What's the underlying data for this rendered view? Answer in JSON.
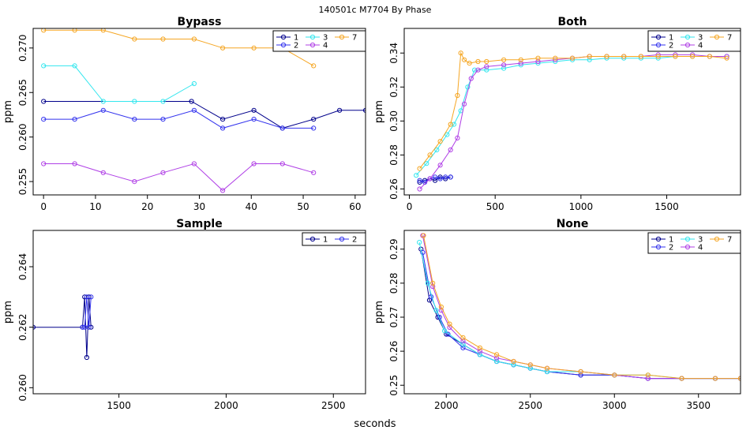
{
  "suptitle": "140501c    M7704   By Phase",
  "xlabel": "seconds",
  "colors": {
    "1": "#00008B",
    "2": "#3333EE",
    "3": "#33E6EE",
    "4": "#B040E6",
    "7": "#F5A623"
  },
  "chart_data": [
    {
      "type": "line",
      "title": "Bypass",
      "ylabel": "ppm",
      "xlim": [
        -2,
        62
      ],
      "ylim": [
        0.2535,
        0.2722
      ],
      "xticks": [
        0,
        10,
        20,
        30,
        40,
        50,
        60
      ],
      "yticks": [
        0.255,
        0.26,
        0.265,
        0.27
      ],
      "ytick_labels": [
        "0.255",
        "0.260",
        "0.265",
        "0.270"
      ],
      "legend": [
        "1",
        "2",
        "3",
        "4",
        "7"
      ],
      "series": [
        {
          "name": "1",
          "x": [
            0,
            28.5,
            34.5,
            40.5,
            46,
            52,
            57,
            62
          ],
          "y": [
            0.264,
            0.264,
            0.262,
            0.263,
            0.261,
            0.262,
            0.263,
            0.263
          ]
        },
        {
          "name": "2",
          "x": [
            0,
            6,
            11.5,
            17.5,
            23,
            29,
            34.5,
            40.5,
            46,
            52
          ],
          "y": [
            0.262,
            0.262,
            0.263,
            0.262,
            0.262,
            0.263,
            0.261,
            0.262,
            0.261,
            0.261
          ]
        },
        {
          "name": "3",
          "x": [
            0,
            6,
            11.5,
            17.5,
            23,
            29
          ],
          "y": [
            0.268,
            0.268,
            0.264,
            0.264,
            0.264,
            0.266
          ]
        },
        {
          "name": "4",
          "x": [
            0,
            6,
            11.5,
            17.5,
            23,
            29,
            34.5,
            40.5,
            46,
            52
          ],
          "y": [
            0.257,
            0.257,
            0.256,
            0.255,
            0.256,
            0.257,
            0.254,
            0.257,
            0.257,
            0.256
          ]
        },
        {
          "name": "7",
          "x": [
            0,
            6,
            11.5,
            17.5,
            23,
            29,
            34.5,
            40.5,
            46,
            52
          ],
          "y": [
            0.272,
            0.272,
            0.272,
            0.271,
            0.271,
            0.271,
            0.27,
            0.27,
            0.27,
            0.268
          ]
        }
      ]
    },
    {
      "type": "line",
      "title": "Both",
      "ylabel": "ppm",
      "xlim": [
        -30,
        1930
      ],
      "ylim": [
        0.2565,
        0.3545
      ],
      "xticks": [
        0,
        500,
        1000,
        1500
      ],
      "yticks": [
        0.26,
        0.28,
        0.3,
        0.32,
        0.34
      ],
      "ytick_labels": [
        "0.26",
        "0.28",
        "0.30",
        "0.32",
        "0.34"
      ],
      "legend": [
        "1",
        "2",
        "3",
        "4",
        "7"
      ],
      "series": [
        {
          "name": "1",
          "x": [
            60,
            90,
            120,
            150,
            180,
            210,
            240
          ],
          "y": [
            0.264,
            0.265,
            0.266,
            0.265,
            0.267,
            0.266,
            0.267
          ]
        },
        {
          "name": "2",
          "x": [
            60,
            90,
            120,
            150,
            180,
            210,
            240
          ],
          "y": [
            0.265,
            0.264,
            0.266,
            0.267,
            0.266,
            0.267,
            0.267
          ]
        },
        {
          "name": "3",
          "x": [
            40,
            100,
            160,
            220,
            260,
            300,
            340,
            380,
            450,
            550,
            650,
            750,
            850,
            950,
            1050,
            1150,
            1250,
            1350,
            1450,
            1550,
            1650,
            1750,
            1850
          ],
          "y": [
            0.268,
            0.275,
            0.283,
            0.292,
            0.298,
            0.306,
            0.32,
            0.33,
            0.33,
            0.331,
            0.333,
            0.334,
            0.335,
            0.336,
            0.336,
            0.337,
            0.337,
            0.337,
            0.337,
            0.338,
            0.338,
            0.338,
            0.338
          ]
        },
        {
          "name": "4",
          "x": [
            60,
            120,
            180,
            240,
            280,
            320,
            360,
            400,
            450,
            550,
            650,
            750,
            850,
            950,
            1050,
            1150,
            1250,
            1350,
            1450,
            1550,
            1650,
            1750,
            1850
          ],
          "y": [
            0.26,
            0.266,
            0.274,
            0.283,
            0.29,
            0.31,
            0.325,
            0.33,
            0.332,
            0.333,
            0.334,
            0.335,
            0.336,
            0.337,
            0.338,
            0.338,
            0.338,
            0.338,
            0.339,
            0.339,
            0.339,
            0.338,
            0.338
          ]
        },
        {
          "name": "7",
          "x": [
            60,
            120,
            180,
            240,
            280,
            300,
            320,
            350,
            400,
            450,
            550,
            650,
            750,
            850,
            950,
            1050,
            1150,
            1250,
            1350,
            1450,
            1550,
            1650,
            1750,
            1850
          ],
          "y": [
            0.272,
            0.28,
            0.288,
            0.298,
            0.315,
            0.34,
            0.336,
            0.334,
            0.335,
            0.335,
            0.336,
            0.336,
            0.337,
            0.337,
            0.337,
            0.338,
            0.338,
            0.338,
            0.338,
            0.338,
            0.338,
            0.338,
            0.338,
            0.337
          ]
        }
      ]
    },
    {
      "type": "line",
      "title": "Sample",
      "ylabel": "ppm",
      "xlim": [
        1100,
        2650
      ],
      "ylim": [
        0.2598,
        0.2652
      ],
      "xticks": [
        1500,
        2000,
        2500
      ],
      "yticks": [
        0.26,
        0.262,
        0.264
      ],
      "ytick_labels": [
        "0.260",
        "0.262",
        "0.264"
      ],
      "legend": [
        "1",
        "2"
      ],
      "series": [
        {
          "name": "1",
          "x": [
            1100,
            1330,
            1340,
            1350,
            1360,
            1370
          ],
          "y": [
            0.262,
            0.262,
            0.263,
            0.261,
            0.263,
            0.262
          ]
        },
        {
          "name": "2",
          "x": [
            1330,
            1340,
            1350,
            1360,
            1370
          ],
          "y": [
            0.262,
            0.262,
            0.263,
            0.262,
            0.263
          ]
        }
      ]
    },
    {
      "type": "line",
      "title": "None",
      "ylabel": "ppm",
      "xlim": [
        1750,
        3750
      ],
      "ylim": [
        0.2475,
        0.2955
      ],
      "xticks": [
        2000,
        2500,
        3000,
        3500
      ],
      "yticks": [
        0.25,
        0.26,
        0.27,
        0.28,
        0.29
      ],
      "ytick_labels": [
        "0.25",
        "0.26",
        "0.27",
        "0.28",
        "0.29"
      ],
      "legend": [
        "1",
        "2",
        "3",
        "4",
        "7"
      ],
      "series": [
        {
          "name": "1",
          "x": [
            1850,
            1900,
            1950,
            2000,
            2100,
            2200,
            2300,
            2400,
            2500,
            2600,
            2800,
            3000,
            3200,
            3400,
            3600,
            3750
          ],
          "y": [
            0.29,
            0.275,
            0.27,
            0.265,
            0.262,
            0.259,
            0.257,
            0.256,
            0.255,
            0.254,
            0.253,
            0.253,
            0.252,
            0.252,
            0.252,
            0.252
          ]
        },
        {
          "name": "2",
          "x": [
            1860,
            1910,
            1960,
            2010,
            2100,
            2200,
            2300,
            2400,
            2500,
            2600,
            2800,
            3000,
            3200,
            3400,
            3600,
            3750
          ],
          "y": [
            0.289,
            0.276,
            0.27,
            0.265,
            0.261,
            0.259,
            0.257,
            0.256,
            0.255,
            0.254,
            0.253,
            0.253,
            0.252,
            0.252,
            0.252,
            0.252
          ]
        },
        {
          "name": "3",
          "x": [
            1840,
            1890,
            1940,
            1990,
            2100,
            2200,
            2300,
            2400,
            2500,
            2600,
            2800,
            3000,
            3200,
            3400,
            3600,
            3750
          ],
          "y": [
            0.292,
            0.28,
            0.272,
            0.266,
            0.262,
            0.259,
            0.257,
            0.256,
            0.255,
            0.254,
            0.254,
            0.253,
            0.253,
            0.252,
            0.252,
            0.252
          ]
        },
        {
          "name": "4",
          "x": [
            1860,
            1920,
            1970,
            2020,
            2100,
            2200,
            2300,
            2400,
            2500,
            2600,
            2800,
            3000,
            3200,
            3400,
            3600,
            3750
          ],
          "y": [
            0.294,
            0.279,
            0.272,
            0.267,
            0.263,
            0.26,
            0.258,
            0.257,
            0.256,
            0.255,
            0.254,
            0.253,
            0.252,
            0.252,
            0.252,
            0.252
          ]
        },
        {
          "name": "7",
          "x": [
            1865,
            1920,
            1970,
            2020,
            2100,
            2200,
            2300,
            2400,
            2500,
            2600,
            2800,
            3000,
            3200,
            3400,
            3600,
            3750
          ],
          "y": [
            0.294,
            0.28,
            0.273,
            0.268,
            0.264,
            0.261,
            0.259,
            0.257,
            0.256,
            0.255,
            0.254,
            0.253,
            0.253,
            0.252,
            0.252,
            0.252
          ]
        }
      ]
    }
  ]
}
